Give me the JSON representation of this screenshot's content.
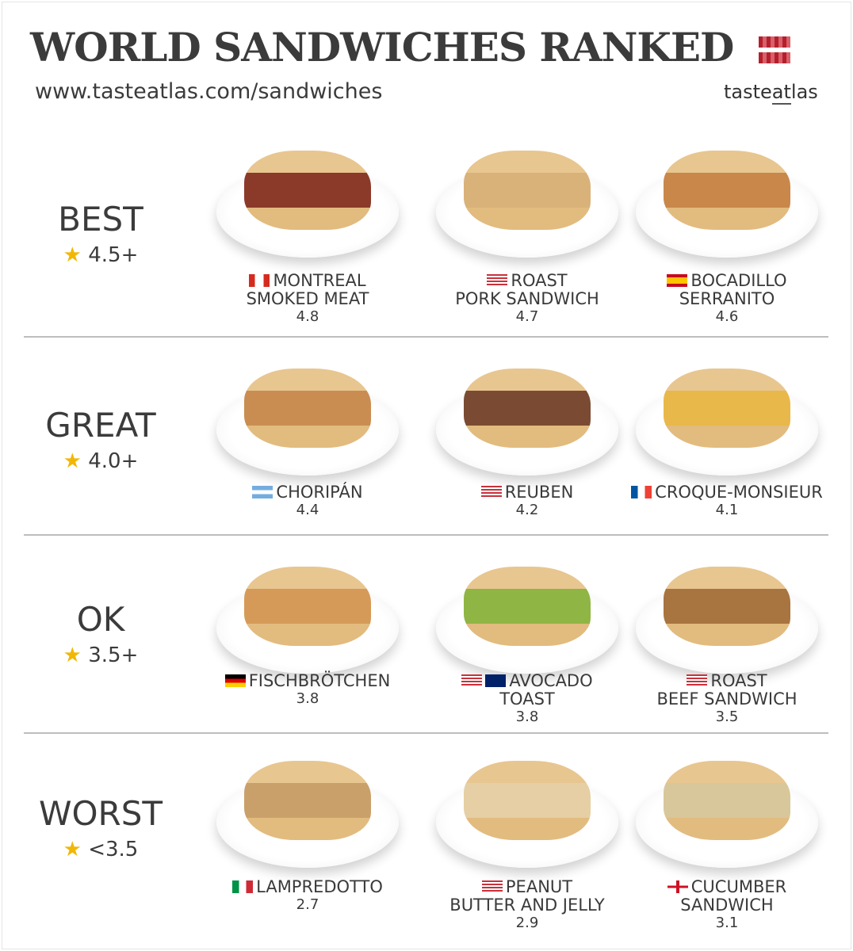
{
  "header": {
    "title": "WORLD SANDWICHES RANKED",
    "url": "www.tasteatlas.com/sandwiches",
    "logo_text": "tasteatlas"
  },
  "tiers": [
    {
      "name": "BEST",
      "rating": "4.5+",
      "items": [
        {
          "name_line1": "MONTREAL",
          "name_line2": "SMOKED MEAT",
          "score": "4.8",
          "flags": [
            "canada-flag-icon"
          ],
          "food_color": "#8b3a2a"
        },
        {
          "name_line1": "ROAST",
          "name_line2": "PORK SANDWICH",
          "score": "4.7",
          "flags": [
            "usa-flag-icon"
          ],
          "food_color": "#d9b27a"
        },
        {
          "name_line1": "BOCADILLO",
          "name_line2": "SERRANITO",
          "score": "4.6",
          "flags": [
            "spain-flag-icon"
          ],
          "food_color": "#c9874a"
        }
      ]
    },
    {
      "name": "GREAT",
      "rating": "4.0+",
      "items": [
        {
          "name_line1": "CHORIPÁN",
          "name_line2": "",
          "score": "4.4",
          "flags": [
            "argentina-flag-icon"
          ],
          "food_color": "#c98d52"
        },
        {
          "name_line1": "REUBEN",
          "name_line2": "",
          "score": "4.2",
          "flags": [
            "usa-flag-icon"
          ],
          "food_color": "#7a4b32"
        },
        {
          "name_line1": "CROQUE-MONSIEUR",
          "name_line2": "",
          "score": "4.1",
          "flags": [
            "france-flag-icon"
          ],
          "food_color": "#e9b84a"
        }
      ]
    },
    {
      "name": "OK",
      "rating": "3.5+",
      "items": [
        {
          "name_line1": "FISCHBRÖTCHEN",
          "name_line2": "",
          "score": "3.8",
          "flags": [
            "germany-flag-icon"
          ],
          "food_color": "#d69a58"
        },
        {
          "name_line1": "AVOCADO",
          "name_line2": "TOAST",
          "score": "3.8",
          "flags": [
            "usa-flag-icon",
            "australia-flag-icon"
          ],
          "food_color": "#8fb544"
        },
        {
          "name_line1": "ROAST",
          "name_line2": "BEEF SANDWICH",
          "score": "3.5",
          "flags": [
            "usa-flag-icon"
          ],
          "food_color": "#a8743f"
        }
      ]
    },
    {
      "name": "WORST",
      "rating": "<3.5",
      "items": [
        {
          "name_line1": "LAMPREDOTTO",
          "name_line2": "",
          "score": "2.7",
          "flags": [
            "italy-flag-icon"
          ],
          "food_color": "#caa06a"
        },
        {
          "name_line1": "PEANUT",
          "name_line2": "BUTTER AND JELLY",
          "score": "2.9",
          "flags": [
            "usa-flag-icon"
          ],
          "food_color": "#e6cfa4"
        },
        {
          "name_line1": "CUCUMBER",
          "name_line2": "SANDWICH",
          "score": "3.1",
          "flags": [
            "england-flag-icon"
          ],
          "food_color": "#d8c79a"
        }
      ]
    }
  ],
  "colors": {
    "star": "#f2b705",
    "logo_red": "#b3202b",
    "text": "#3a3a3a",
    "divider": "#bdbdbd"
  }
}
